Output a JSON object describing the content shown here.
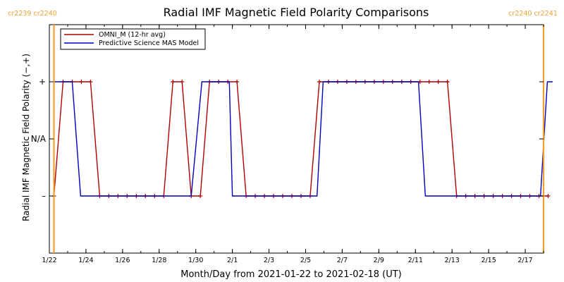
{
  "chart_data": {
    "type": "line",
    "title": "Radial IMF Magnetic Field Polarity Comparisons",
    "xlabel": "Month/Day from 2021-01-22 to 2021-02-18 (UT)",
    "ylabel": "Radial IMF Magnetic Field Polarity (−,+)",
    "x_range": [
      "2021-01-22",
      "2021-02-18"
    ],
    "y_ticks": [
      {
        "value": 1,
        "label": "+"
      },
      {
        "value": 0,
        "label": "N/A"
      },
      {
        "value": -1,
        "label": "–"
      }
    ],
    "ylim": [
      -2,
      2
    ],
    "x_ticks": [
      {
        "date": "2021-01-22",
        "label": "1/22"
      },
      {
        "date": "2021-01-24",
        "label": "1/24"
      },
      {
        "date": "2021-01-26",
        "label": "1/26"
      },
      {
        "date": "2021-01-28",
        "label": "1/28"
      },
      {
        "date": "2021-01-30",
        "label": "1/30"
      },
      {
        "date": "2021-02-01",
        "label": "2/1"
      },
      {
        "date": "2021-02-03",
        "label": "2/3"
      },
      {
        "date": "2021-02-05",
        "label": "2/5"
      },
      {
        "date": "2021-02-07",
        "label": "2/7"
      },
      {
        "date": "2021-02-09",
        "label": "2/9"
      },
      {
        "date": "2021-02-11",
        "label": "2/11"
      },
      {
        "date": "2021-02-13",
        "label": "2/13"
      },
      {
        "date": "2021-02-15",
        "label": "2/15"
      },
      {
        "date": "2021-02-17",
        "label": "2/17"
      }
    ],
    "markers": [
      {
        "date": "2021-01-22 06:00",
        "labels": [
          "cr2239",
          "cr2240"
        ],
        "side": "left",
        "color": "#f0a030"
      },
      {
        "date": "2021-02-18 00:00",
        "labels": [
          "cr2240",
          "cr2241"
        ],
        "side": "right",
        "color": "#f0a030"
      }
    ],
    "legend": {
      "placement": "top-left"
    },
    "series": [
      {
        "name": "OMNI_M (12-hr avg)",
        "color": "#b00000",
        "marker": "+",
        "points": [
          [
            "2021-01-22 06:00",
            -1
          ],
          [
            "2021-01-22 18:00",
            1
          ],
          [
            "2021-01-23 06:00",
            1
          ],
          [
            "2021-01-23 18:00",
            1
          ],
          [
            "2021-01-24 06:00",
            1
          ],
          [
            "2021-01-24 18:00",
            -1
          ],
          [
            "2021-01-25 06:00",
            -1
          ],
          [
            "2021-01-25 18:00",
            -1
          ],
          [
            "2021-01-26 06:00",
            -1
          ],
          [
            "2021-01-26 18:00",
            -1
          ],
          [
            "2021-01-27 06:00",
            -1
          ],
          [
            "2021-01-27 18:00",
            -1
          ],
          [
            "2021-01-28 06:00",
            -1
          ],
          [
            "2021-01-28 18:00",
            1
          ],
          [
            "2021-01-29 06:00",
            1
          ],
          [
            "2021-01-29 18:00",
            -1
          ],
          [
            "2021-01-30 06:00",
            -1
          ],
          [
            "2021-01-30 18:00",
            1
          ],
          [
            "2021-01-31 06:00",
            1
          ],
          [
            "2021-01-31 18:00",
            1
          ],
          [
            "2021-02-01 06:00",
            1
          ],
          [
            "2021-02-01 18:00",
            -1
          ],
          [
            "2021-02-02 06:00",
            -1
          ],
          [
            "2021-02-02 18:00",
            -1
          ],
          [
            "2021-02-03 06:00",
            -1
          ],
          [
            "2021-02-03 18:00",
            -1
          ],
          [
            "2021-02-04 06:00",
            -1
          ],
          [
            "2021-02-04 18:00",
            -1
          ],
          [
            "2021-02-05 06:00",
            -1
          ],
          [
            "2021-02-05 18:00",
            1
          ],
          [
            "2021-02-06 06:00",
            1
          ],
          [
            "2021-02-06 18:00",
            1
          ],
          [
            "2021-02-07 06:00",
            1
          ],
          [
            "2021-02-07 18:00",
            1
          ],
          [
            "2021-02-08 06:00",
            1
          ],
          [
            "2021-02-08 18:00",
            1
          ],
          [
            "2021-02-09 06:00",
            1
          ],
          [
            "2021-02-09 18:00",
            1
          ],
          [
            "2021-02-10 06:00",
            1
          ],
          [
            "2021-02-10 18:00",
            1
          ],
          [
            "2021-02-11 06:00",
            1
          ],
          [
            "2021-02-11 18:00",
            1
          ],
          [
            "2021-02-12 06:00",
            1
          ],
          [
            "2021-02-12 18:00",
            1
          ],
          [
            "2021-02-13 06:00",
            -1
          ],
          [
            "2021-02-13 18:00",
            -1
          ],
          [
            "2021-02-14 06:00",
            -1
          ],
          [
            "2021-02-14 18:00",
            -1
          ],
          [
            "2021-02-15 06:00",
            -1
          ],
          [
            "2021-02-15 18:00",
            -1
          ],
          [
            "2021-02-16 06:00",
            -1
          ],
          [
            "2021-02-16 18:00",
            -1
          ],
          [
            "2021-02-17 06:00",
            -1
          ],
          [
            "2021-02-17 18:00",
            -1
          ],
          [
            "2021-02-18 06:00",
            -1
          ]
        ]
      },
      {
        "name": "Predictive Science MAS Model",
        "color": "#0000c0",
        "points": [
          [
            "2021-01-22 06:00",
            1
          ],
          [
            "2021-01-23 06:00",
            1
          ],
          [
            "2021-01-23 17:00",
            -1
          ],
          [
            "2021-01-29 18:00",
            -1
          ],
          [
            "2021-01-30 08:00",
            1
          ],
          [
            "2021-01-31 20:00",
            1
          ],
          [
            "2021-02-01 00:00",
            -1
          ],
          [
            "2021-02-05 15:00",
            -1
          ],
          [
            "2021-02-05 23:00",
            1
          ],
          [
            "2021-02-11 04:00",
            1
          ],
          [
            "2021-02-11 13:00",
            -1
          ],
          [
            "2021-02-17 20:00",
            -1
          ],
          [
            "2021-02-18 05:00",
            1
          ],
          [
            "2021-02-18 12:00",
            1
          ]
        ]
      }
    ]
  }
}
